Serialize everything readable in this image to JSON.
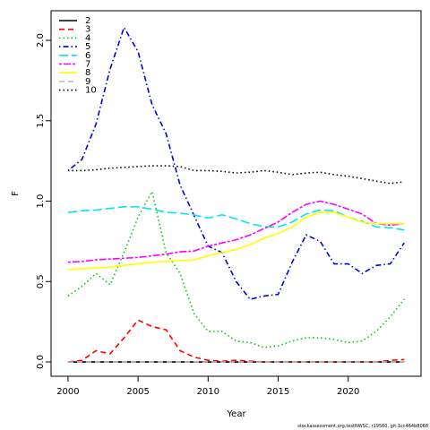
{
  "chart_data": {
    "type": "line",
    "xlabel": "Year",
    "ylabel": "F",
    "footnote": "stockassessment.org,testNWSC, r19560, git:1cc464b8068",
    "x": [
      2000,
      2001,
      2002,
      2003,
      2004,
      2005,
      2006,
      2007,
      2008,
      2009,
      2010,
      2011,
      2012,
      2013,
      2014,
      2015,
      2016,
      2017,
      2018,
      2019,
      2020,
      2021,
      2022,
      2023,
      2024
    ],
    "xlim": [
      1998.79,
      2025.2
    ],
    "xticks": [
      2000,
      2005,
      2010,
      2015,
      2020
    ],
    "ylim": [
      -0.089,
      2.184
    ],
    "yticks": [
      {
        "value": 0,
        "label": "0.0"
      },
      0.5,
      {
        "value": 1,
        "label": "1.0"
      },
      1.5,
      {
        "value": 2,
        "label": "2.0"
      }
    ],
    "legend": "top-left",
    "series": [
      {
        "name": "2",
        "color": "#000000",
        "dash": "none",
        "values": [
          0,
          0,
          0,
          0,
          0,
          0,
          0,
          0,
          0,
          0,
          0,
          0,
          0,
          0,
          0,
          0,
          0,
          0,
          0,
          0,
          0,
          0,
          0,
          0,
          0
        ]
      },
      {
        "name": "3",
        "color": "#ff0000",
        "dash": "6,4",
        "values": [
          0,
          0.01,
          0.07,
          0.05,
          0.15,
          0.26,
          0.22,
          0.2,
          0.07,
          0.03,
          0.01,
          0.005,
          0.01,
          0.005,
          0,
          0,
          0,
          0,
          0,
          0,
          0,
          0,
          0,
          0.01,
          0.015
        ]
      },
      {
        "name": "4",
        "color": "#00cc00",
        "dash": "1.5,3",
        "values": [
          0.41,
          0.47,
          0.55,
          0.48,
          0.68,
          0.9,
          1.06,
          0.68,
          0.55,
          0.3,
          0.19,
          0.19,
          0.13,
          0.12,
          0.09,
          0.1,
          0.13,
          0.15,
          0.15,
          0.14,
          0.12,
          0.13,
          0.19,
          0.28,
          0.39
        ]
      },
      {
        "name": "5",
        "color": "#0000dd",
        "dash": "1.5,3,6,3",
        "values": [
          1.19,
          1.26,
          1.48,
          1.82,
          2.08,
          1.93,
          1.6,
          1.42,
          1.1,
          0.91,
          0.72,
          0.68,
          0.5,
          0.39,
          0.41,
          0.42,
          0.62,
          0.79,
          0.75,
          0.61,
          0.61,
          0.55,
          0.6,
          0.61,
          0.74
        ]
      },
      {
        "name": "6",
        "color": "#00e5ee",
        "dash": "10,4",
        "values": [
          0.93,
          0.94,
          0.945,
          0.955,
          0.965,
          0.965,
          0.95,
          0.93,
          0.925,
          0.915,
          0.895,
          0.915,
          0.89,
          0.86,
          0.84,
          0.84,
          0.87,
          0.92,
          0.945,
          0.94,
          0.9,
          0.875,
          0.84,
          0.835,
          0.82
        ]
      },
      {
        "name": "7",
        "color": "#ff00ff",
        "dash": "3,2,8,2",
        "values": [
          0.62,
          0.625,
          0.635,
          0.64,
          0.645,
          0.65,
          0.66,
          0.67,
          0.685,
          0.69,
          0.72,
          0.74,
          0.76,
          0.79,
          0.83,
          0.87,
          0.93,
          0.98,
          1.0,
          0.98,
          0.95,
          0.92,
          0.86,
          0.85,
          0.86
        ]
      },
      {
        "name": "8",
        "color": "#ffff00",
        "dash": "none",
        "values": [
          0.575,
          0.58,
          0.585,
          0.59,
          0.6,
          0.61,
          0.62,
          0.625,
          0.63,
          0.635,
          0.66,
          0.68,
          0.7,
          0.73,
          0.77,
          0.8,
          0.84,
          0.9,
          0.93,
          0.93,
          0.9,
          0.87,
          0.86,
          0.86,
          0.86
        ]
      },
      {
        "name": "9",
        "color": "#bebebe",
        "dash": "6,4",
        "values": [
          0,
          0,
          0,
          0,
          0,
          0,
          0,
          0,
          0,
          0,
          0,
          0,
          0,
          0,
          0,
          0,
          0,
          0,
          0,
          0,
          0,
          0,
          0,
          0,
          0
        ]
      },
      {
        "name": "10",
        "color": "#000000",
        "dash": "1.5,3",
        "values": [
          1.19,
          1.19,
          1.195,
          1.205,
          1.21,
          1.215,
          1.22,
          1.22,
          1.215,
          1.19,
          1.19,
          1.185,
          1.175,
          1.18,
          1.19,
          1.18,
          1.165,
          1.175,
          1.18,
          1.165,
          1.155,
          1.14,
          1.125,
          1.11,
          1.12
        ]
      }
    ]
  }
}
